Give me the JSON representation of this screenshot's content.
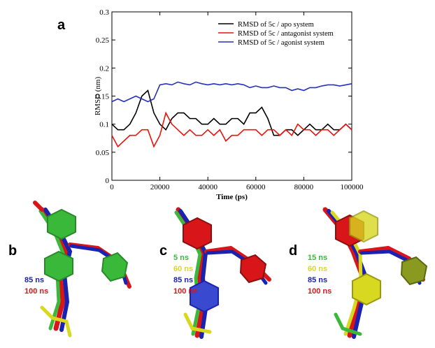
{
  "chart_data": {
    "type": "line",
    "panel_label": "a",
    "x_label": "Time (ps)",
    "y_label": "RMSD (nm)",
    "x": [
      0,
      2500,
      5000,
      7500,
      10000,
      12500,
      15000,
      17500,
      20000,
      22500,
      25000,
      27500,
      30000,
      32500,
      35000,
      37500,
      40000,
      42500,
      45000,
      47500,
      50000,
      52500,
      55000,
      57500,
      60000,
      62500,
      65000,
      67500,
      70000,
      72500,
      75000,
      77500,
      80000,
      82500,
      85000,
      87500,
      90000,
      92500,
      95000,
      97500,
      100000
    ],
    "series": [
      {
        "name": "RMSD of 5c / apo system",
        "color": "#000000",
        "values": [
          0.1,
          0.09,
          0.09,
          0.1,
          0.12,
          0.15,
          0.16,
          0.12,
          0.1,
          0.09,
          0.11,
          0.12,
          0.12,
          0.11,
          0.11,
          0.1,
          0.1,
          0.11,
          0.1,
          0.1,
          0.11,
          0.11,
          0.1,
          0.12,
          0.12,
          0.13,
          0.11,
          0.08,
          0.08,
          0.09,
          0.09,
          0.08,
          0.09,
          0.1,
          0.09,
          0.09,
          0.1,
          0.09,
          0.09,
          0.1,
          0.09
        ]
      },
      {
        "name": "RMSD of 5c / antagonist system",
        "color": "#e8140c",
        "values": [
          0.08,
          0.06,
          0.07,
          0.08,
          0.08,
          0.09,
          0.09,
          0.06,
          0.08,
          0.12,
          0.1,
          0.09,
          0.08,
          0.09,
          0.08,
          0.08,
          0.09,
          0.08,
          0.09,
          0.07,
          0.08,
          0.08,
          0.09,
          0.09,
          0.09,
          0.08,
          0.09,
          0.09,
          0.08,
          0.09,
          0.08,
          0.1,
          0.09,
          0.09,
          0.08,
          0.09,
          0.09,
          0.08,
          0.09,
          0.1,
          0.09
        ]
      },
      {
        "name": "RMSD of 5c / agonist system",
        "color": "#2630b8",
        "values": [
          0.14,
          0.145,
          0.14,
          0.145,
          0.15,
          0.145,
          0.14,
          0.145,
          0.17,
          0.172,
          0.17,
          0.175,
          0.172,
          0.17,
          0.175,
          0.172,
          0.17,
          0.172,
          0.17,
          0.172,
          0.17,
          0.172,
          0.17,
          0.165,
          0.168,
          0.165,
          0.165,
          0.168,
          0.165,
          0.165,
          0.16,
          0.163,
          0.16,
          0.165,
          0.165,
          0.168,
          0.17,
          0.17,
          0.168,
          0.17,
          0.172
        ]
      }
    ],
    "xlim": [
      0,
      100000
    ],
    "xticks": [
      0,
      20000,
      40000,
      60000,
      80000,
      100000
    ],
    "ylim": [
      0,
      0.3
    ],
    "yticks": [
      0,
      0.05,
      0.1,
      0.15,
      0.2,
      0.25,
      0.3
    ],
    "legend": "upper-right"
  },
  "panels": [
    {
      "label": "b",
      "times": [
        {
          "text": "85 ns",
          "color": "#1a22b0"
        },
        {
          "text": "100 ns",
          "color": "#d8161a"
        }
      ]
    },
    {
      "label": "c",
      "times": [
        {
          "text": "5 ns",
          "color": "#3ab83a"
        },
        {
          "text": "60 ns",
          "color": "#d8d820"
        },
        {
          "text": "85 ns",
          "color": "#1a22b0"
        },
        {
          "text": "100 ns",
          "color": "#d8161a"
        }
      ]
    },
    {
      "label": "d",
      "times": [
        {
          "text": "15 ns",
          "color": "#3ab83a"
        },
        {
          "text": "60 ns",
          "color": "#d8d820"
        },
        {
          "text": "85 ns",
          "color": "#1a22b0"
        },
        {
          "text": "100 ns",
          "color": "#d8161a"
        }
      ]
    }
  ]
}
